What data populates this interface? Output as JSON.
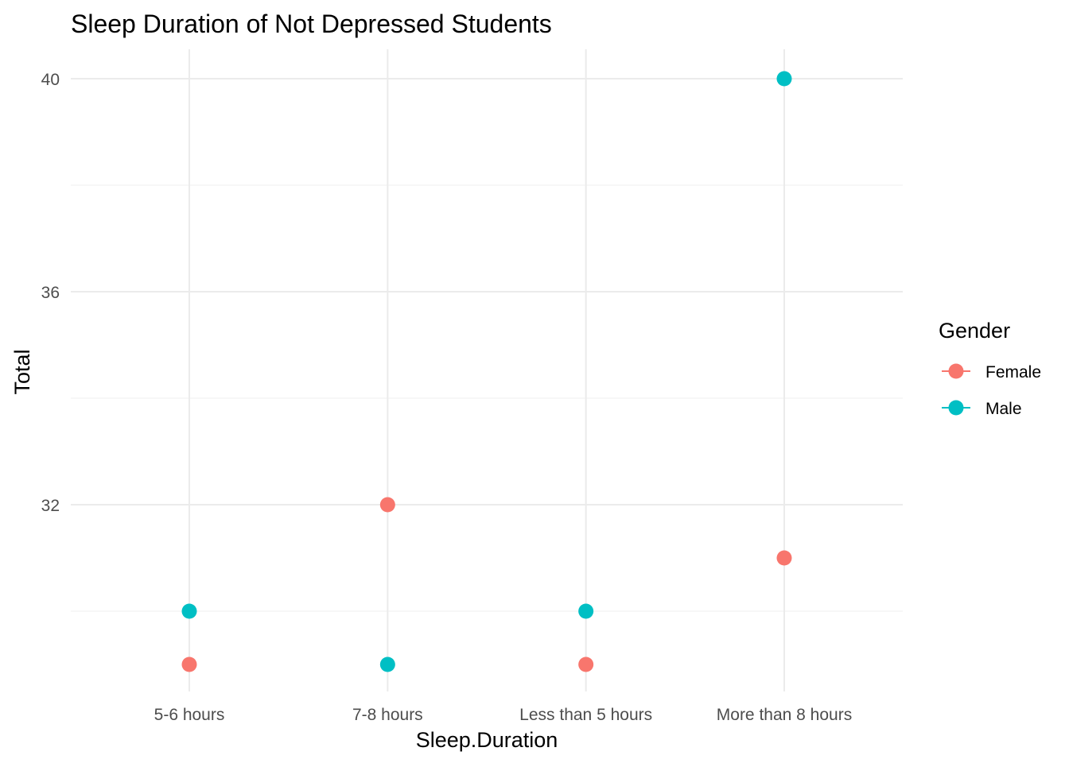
{
  "chart_data": {
    "type": "scatter",
    "title": "Sleep Duration of Not Depressed Students",
    "xlabel": "Sleep.Duration",
    "ylabel": "Total",
    "categories": [
      "5-6 hours",
      "7-8 hours",
      "Less than 5 hours",
      "More than 8 hours"
    ],
    "y_ticks": [
      32,
      36,
      40
    ],
    "ylim": [
      28.5,
      40.5
    ],
    "grid": true,
    "legend": {
      "title": "Gender",
      "placement": "right"
    },
    "series": [
      {
        "name": "Female",
        "color": "#F8766D",
        "values": [
          29,
          32,
          29,
          31
        ]
      },
      {
        "name": "Male",
        "color": "#00BFC4",
        "values": [
          30,
          29,
          30,
          40
        ]
      }
    ]
  }
}
